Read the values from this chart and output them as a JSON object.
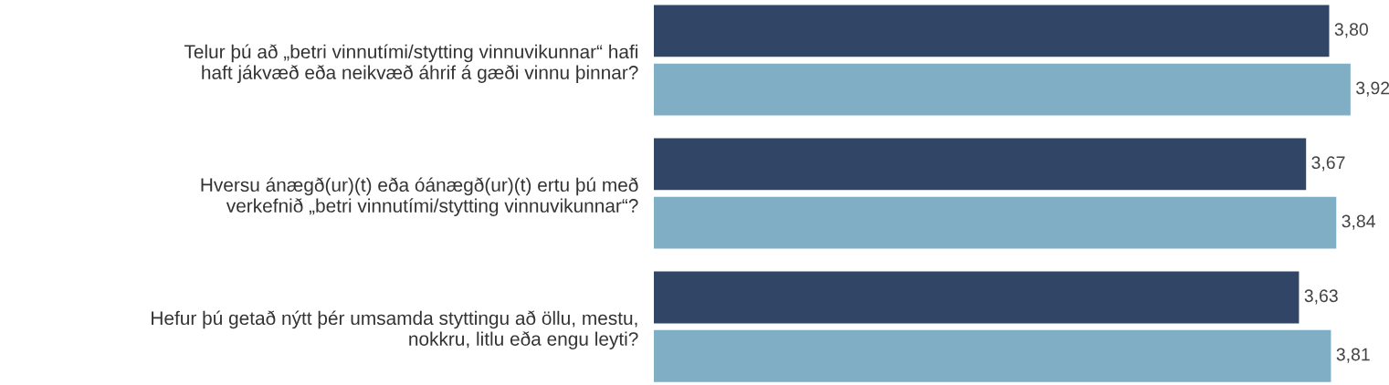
{
  "chart_data": {
    "type": "bar",
    "orientation": "horizontal",
    "categories": [
      "Telur þú að „betri vinnutími/stytting vinnuvikunnar“ hafi\nhaft jákvæð eða neikvæð áhrif á gæði vinnu þinnar?",
      "Hversu ánægð(ur)(t) eða óánægð(ur)(t) ertu þú með\nverkefnið „betri vinnutími/stytting vinnuvikunnar“?",
      "Hefur þú getað nýtt þér umsamda styttingu að öllu, mestu,\nnokkru, litlu eða engu leyti?"
    ],
    "series": [
      {
        "color": "#314567",
        "values": [
          3.8,
          3.67,
          3.63
        ],
        "value_labels": [
          "3,80",
          "3,67",
          "3,63"
        ]
      },
      {
        "color": "#80aec5",
        "values": [
          3.92,
          3.84,
          3.81
        ],
        "value_labels": [
          "3,92",
          "3,84",
          "3,81"
        ]
      }
    ],
    "tick_labels": "y",
    "grid": false,
    "legend": false
  }
}
